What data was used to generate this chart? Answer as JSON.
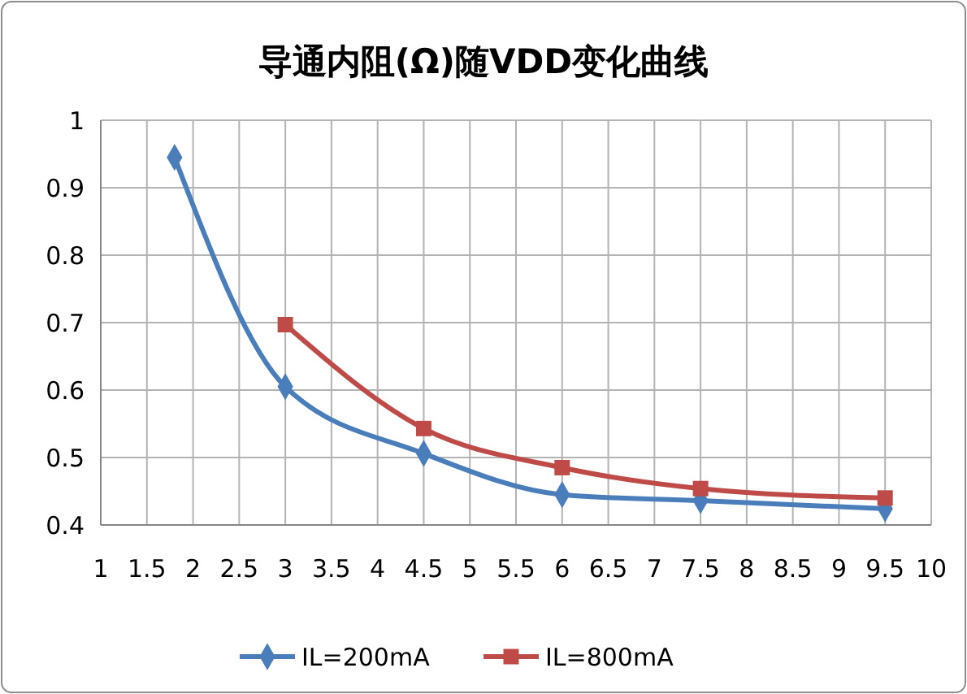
{
  "chart_data": {
    "type": "line",
    "title": "导通内阻(Ω)随VDD变化曲线",
    "xlim": [
      1,
      10
    ],
    "xticks": [
      1,
      1.5,
      2,
      2.5,
      3,
      3.5,
      4,
      4.5,
      5,
      5.5,
      6,
      6.5,
      7,
      7.5,
      8,
      8.5,
      9,
      9.5,
      10
    ],
    "ylim": [
      0.4,
      1
    ],
    "yticks": [
      0.4,
      0.5,
      0.6,
      0.7,
      0.8,
      0.9,
      1
    ],
    "grid": true,
    "legend": "bottom",
    "line_style": "solid",
    "series": [
      {
        "name": "IL=200mA",
        "color": "#4a7ebb",
        "marker": "diamond",
        "x": [
          1.8,
          3,
          4.5,
          6,
          7.5,
          9.5
        ],
        "values": [
          0.945,
          0.605,
          0.506,
          0.445,
          0.436,
          0.424
        ]
      },
      {
        "name": "IL=800mA",
        "color": "#be4b48",
        "marker": "square",
        "x": [
          3,
          4.5,
          6,
          7.5,
          9.5
        ],
        "values": [
          0.697,
          0.543,
          0.485,
          0.454,
          0.44
        ]
      }
    ]
  }
}
